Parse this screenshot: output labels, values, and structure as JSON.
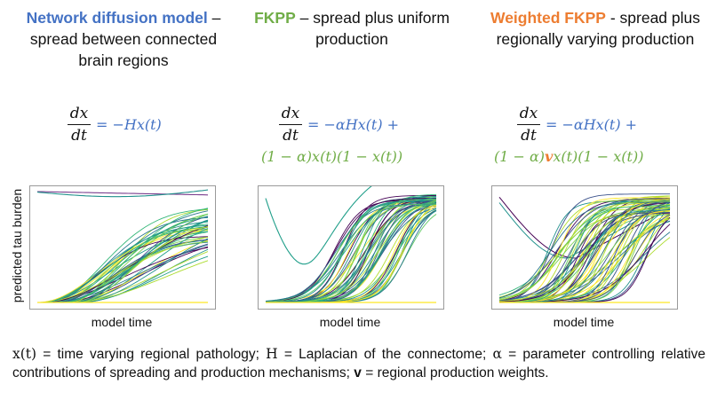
{
  "columns": [
    {
      "title_highlight": "Network diffusion model",
      "title_rest": " – spread between connected brain regions",
      "eq_lhs_num": "dx",
      "eq_lhs_den": "dt",
      "eq_rhs_line1": "= −Hx(t)",
      "eq_rhs_line2": ""
    },
    {
      "title_highlight": "FKPP",
      "title_rest": " – spread plus uniform production",
      "eq_lhs_num": "dx",
      "eq_lhs_den": "dt",
      "eq_rhs_line1": "= −αHx(t) +",
      "eq_rhs_line2": "(1 − α)x(t)(1 − x(t))"
    },
    {
      "title_highlight": "Weighted FKPP",
      "title_rest": " - spread plus regionally varying production",
      "eq_lhs_num": "dx",
      "eq_lhs_den": "dt",
      "eq_rhs_line1": "= −αHx(t) +",
      "eq_rhs_line2_a": "(1 − α)",
      "eq_rhs_line2_v": "v",
      "eq_rhs_line2_b": "x(t)(1 − x(t))"
    }
  ],
  "plots": {
    "ylabel": "predicted tau burden",
    "xlabel": "model time"
  },
  "caption": {
    "x_sym": "x(t)",
    "text1": " = time varying regional pathology; ",
    "h_sym": "H",
    "text2": " = Laplacian of the connectome; ",
    "a_sym": "α",
    "text3": " = parameter controlling relative contributions of spreading and production mechanisms; ",
    "v_sym": "v",
    "text4": " = regional production weights."
  },
  "colors": {
    "blue": "#4472C4",
    "green": "#70AD47",
    "orange": "#ED7D31"
  }
}
